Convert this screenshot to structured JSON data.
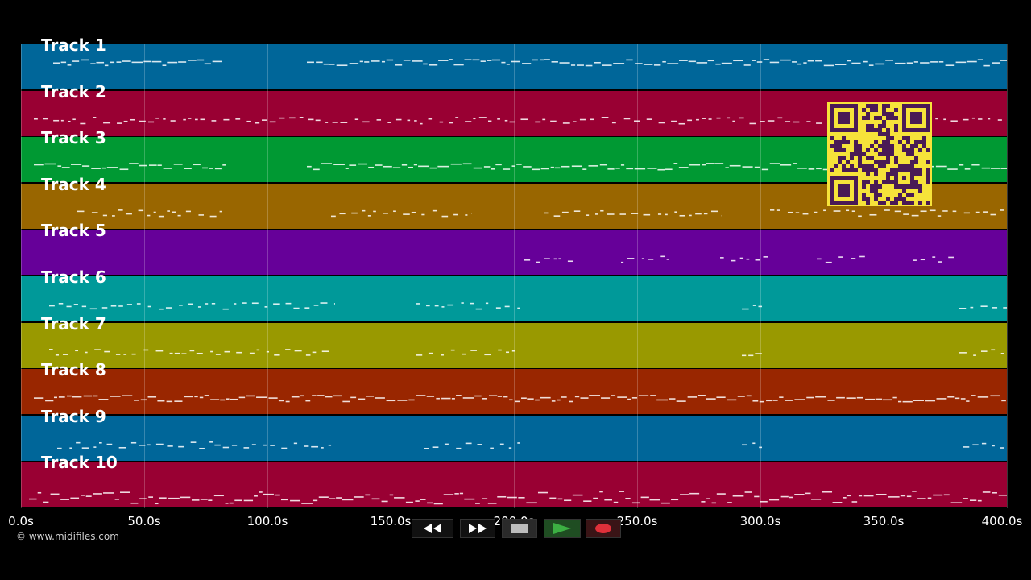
{
  "tracks": [
    {
      "label": "Track 1",
      "color": "#006699"
    },
    {
      "label": "Track 2",
      "color": "#990033"
    },
    {
      "label": "Track 3",
      "color": "#009933"
    },
    {
      "label": "Track 4",
      "color": "#996600"
    },
    {
      "label": "Track 5",
      "color": "#660099"
    },
    {
      "label": "Track 6",
      "color": "#009999"
    },
    {
      "label": "Track 7",
      "color": "#999900"
    },
    {
      "label": "Track 8",
      "color": "#992600"
    },
    {
      "label": "Track 9",
      "color": "#006699"
    },
    {
      "label": "Track 10",
      "color": "#990033"
    }
  ],
  "timeline": {
    "ticks": [
      "0.0s",
      "50.0s",
      "100.0s",
      "150.0s",
      "200.0s",
      "250.0s",
      "300.0s",
      "350.0s",
      "400.0s"
    ],
    "tick_seconds": [
      0,
      50,
      100,
      150,
      200,
      250,
      300,
      350,
      400
    ],
    "max_seconds": 400
  },
  "copyright": "© www.midifiles.com",
  "transport": {
    "rewind_icon": "rewind-icon",
    "fast_forward_icon": "fast-forward-icon",
    "stop_icon": "stop-icon",
    "play_icon": "play-icon",
    "record_icon": "record-icon",
    "play_color": "#3cb043",
    "record_color": "#e0303a"
  },
  "qr_icon": "qr-code-icon"
}
